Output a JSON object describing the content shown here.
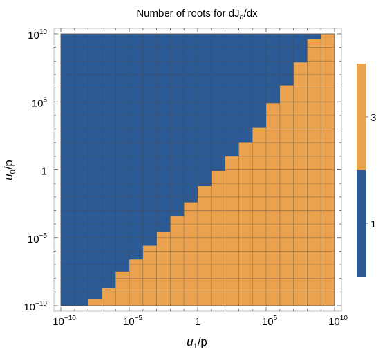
{
  "chart_data": {
    "type": "heatmap",
    "title": {
      "prefix": "Number of roots for dJ",
      "sub": "n",
      "suffix": "/dx"
    },
    "xlabel": {
      "italic": "u",
      "sub": "1",
      "rest": "/p"
    },
    "ylabel": {
      "italic": "u",
      "sub": "0",
      "rest": "/p"
    },
    "x_scale": "log",
    "y_scale": "log",
    "xlim": [
      1e-10,
      10000000000.0
    ],
    "ylim": [
      1e-10,
      10000000000.0
    ],
    "x_ticks": [
      {
        "value": 1e-10,
        "base": "10",
        "exp": "−10"
      },
      {
        "value": 1e-05,
        "base": "10",
        "exp": "−5"
      },
      {
        "value": 1,
        "base": "1",
        "exp": ""
      },
      {
        "value": 100000.0,
        "base": "10",
        "exp": "5"
      },
      {
        "value": 10000000000.0,
        "base": "10",
        "exp": "10"
      }
    ],
    "y_ticks": [
      {
        "value": 1e-10,
        "base": "10",
        "exp": "−10"
      },
      {
        "value": 1e-05,
        "base": "10",
        "exp": "−5"
      },
      {
        "value": 1,
        "base": "1",
        "exp": ""
      },
      {
        "value": 100000.0,
        "base": "10",
        "exp": "5"
      },
      {
        "value": 10000000000.0,
        "base": "10",
        "exp": "10"
      }
    ],
    "grid_cells_per_decade": 1,
    "boundary_log_x": [
      -10,
      -9,
      -8,
      -7,
      -6,
      -5,
      -4,
      -3,
      -2,
      -1,
      0,
      1,
      2,
      3,
      4,
      5,
      6,
      7,
      8,
      9,
      10
    ],
    "boundary_log_y": [
      -10.5,
      -10.5,
      -9.5,
      -8.7,
      -7.5,
      -6.6,
      -5.6,
      -4.6,
      -3.4,
      -2.4,
      -1.2,
      -0.1,
      1,
      2,
      3.1,
      4.9,
      6.2,
      7.9,
      9.6,
      10,
      10
    ],
    "regions": [
      {
        "label": "1",
        "value": 1,
        "color": "#2c5a94",
        "where": "above boundary"
      },
      {
        "label": "3",
        "value": 3,
        "color": "#eaa24e",
        "where": "below boundary"
      }
    ],
    "legend": {
      "placement": "right",
      "entries": [
        {
          "label": "1",
          "color": "#2c5a94"
        },
        {
          "label": "3",
          "color": "#eaa24e"
        }
      ]
    }
  }
}
